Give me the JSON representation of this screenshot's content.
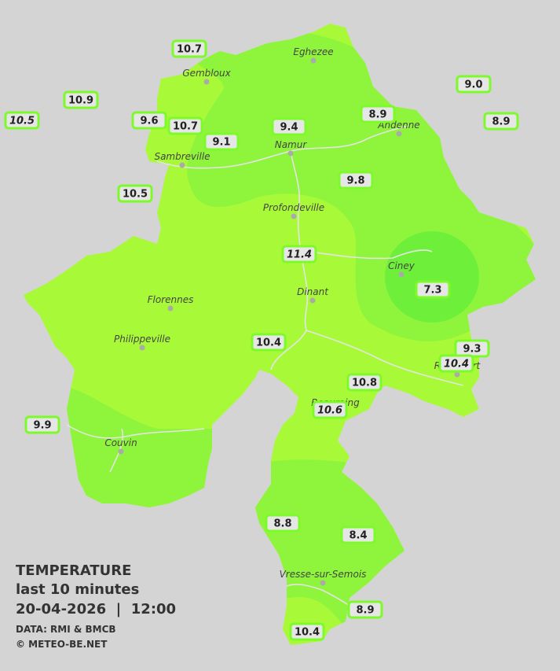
{
  "map": {
    "legend": {
      "title": "TEMPERATURE",
      "subtitle": "last 10 minutes",
      "datetime": "20-04-2026  |  12:00",
      "source": "DATA: RMI & BMCB",
      "copyright": "© METEO-BE.NET"
    },
    "towns": [
      "Eghezee",
      "Gembloux",
      "Andenne",
      "Namur",
      "Sambreville",
      "Profondeville",
      "Ciney",
      "Dinant",
      "Florennes",
      "Philippeville",
      "Rochefort",
      "Beauraing",
      "Couvin",
      "Vresse-sur-Semois"
    ],
    "stations": [
      {
        "label": "10.7",
        "italic": false
      },
      {
        "label": "9.0",
        "italic": false
      },
      {
        "label": "10.9",
        "italic": false
      },
      {
        "label": "8.9",
        "italic": false
      },
      {
        "label": "10.5",
        "italic": true
      },
      {
        "label": "9.6",
        "italic": false
      },
      {
        "label": "10.7",
        "italic": false
      },
      {
        "label": "9.4",
        "italic": false
      },
      {
        "label": "8.9",
        "italic": false
      },
      {
        "label": "9.1",
        "italic": false
      },
      {
        "label": "9.8",
        "italic": false
      },
      {
        "label": "10.5",
        "italic": false
      },
      {
        "label": "11.4",
        "italic": true
      },
      {
        "label": "7.3",
        "italic": false
      },
      {
        "label": "10.4",
        "italic": false
      },
      {
        "label": "9.3",
        "italic": false
      },
      {
        "label": "10.4",
        "italic": true
      },
      {
        "label": "10.8",
        "italic": false
      },
      {
        "label": "10.6",
        "italic": true
      },
      {
        "label": "9.9",
        "italic": false
      },
      {
        "label": "8.8",
        "italic": false
      },
      {
        "label": "8.4",
        "italic": false
      },
      {
        "label": "8.9",
        "italic": false
      },
      {
        "label": "10.4",
        "italic": false
      }
    ]
  }
}
